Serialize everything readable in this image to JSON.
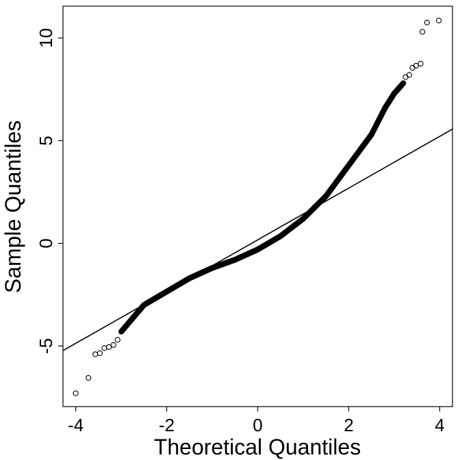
{
  "chart_data": {
    "type": "scatter",
    "title": "",
    "xlabel": "Theoretical Quantiles",
    "ylabel": "Sample Quantiles",
    "xlim": [
      -4.28,
      4.28
    ],
    "ylim": [
      -7.95,
      11.55
    ],
    "x_ticks": [
      -4,
      -2,
      0,
      2,
      4
    ],
    "x_tick_labels": [
      "-4",
      "-2",
      "0",
      "2",
      "4"
    ],
    "y_ticks": [
      -5,
      0,
      5,
      10
    ],
    "y_tick_labels": [
      "-5",
      "0",
      "5",
      "10"
    ],
    "grid": false,
    "legend": "none",
    "colors": {
      "points": "#000000",
      "reference_line": "#000000",
      "frame": "#000000",
      "background": "#ffffff"
    },
    "reference_line": {
      "intercept": 0.17,
      "slope": 1.26
    },
    "curve_knots": [
      {
        "x": -3.0,
        "y": -4.3
      },
      {
        "x": -2.5,
        "y": -3.0
      },
      {
        "x": -2.0,
        "y": -2.35
      },
      {
        "x": -1.5,
        "y": -1.7
      },
      {
        "x": -1.0,
        "y": -1.2
      },
      {
        "x": -0.5,
        "y": -0.8
      },
      {
        "x": 0.0,
        "y": -0.3
      },
      {
        "x": 0.5,
        "y": 0.35
      },
      {
        "x": 1.0,
        "y": 1.2
      },
      {
        "x": 1.5,
        "y": 2.3
      },
      {
        "x": 2.0,
        "y": 3.8
      },
      {
        "x": 2.5,
        "y": 5.3
      },
      {
        "x": 2.8,
        "y": 6.6
      },
      {
        "x": 3.0,
        "y": 7.3
      },
      {
        "x": 3.2,
        "y": 7.8
      }
    ],
    "tail_points": [
      {
        "x": -4.0,
        "y": -7.3
      },
      {
        "x": -3.72,
        "y": -6.55
      },
      {
        "x": -3.57,
        "y": -5.4
      },
      {
        "x": -3.47,
        "y": -5.35
      },
      {
        "x": -3.37,
        "y": -5.1
      },
      {
        "x": -3.27,
        "y": -5.05
      },
      {
        "x": -3.17,
        "y": -4.95
      },
      {
        "x": -3.08,
        "y": -4.7
      },
      {
        "x": 3.25,
        "y": 8.1
      },
      {
        "x": 3.33,
        "y": 8.2
      },
      {
        "x": 3.4,
        "y": 8.55
      },
      {
        "x": 3.48,
        "y": 8.65
      },
      {
        "x": 3.58,
        "y": 8.75
      },
      {
        "x": 3.62,
        "y": 10.3
      },
      {
        "x": 3.72,
        "y": 10.75
      },
      {
        "x": 3.98,
        "y": 10.85
      }
    ]
  }
}
